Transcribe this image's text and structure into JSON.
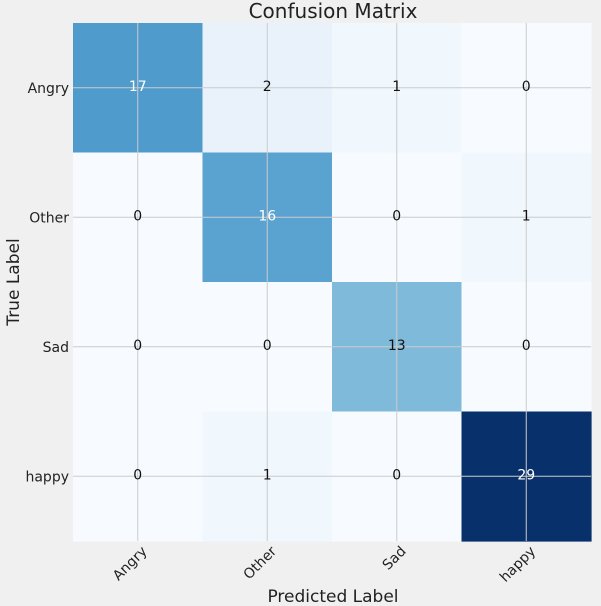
{
  "chart_data": {
    "type": "heatmap",
    "title": "Confusion Matrix",
    "xlabel": "Predicted Label",
    "ylabel": "True Label",
    "x_categories": [
      "Angry",
      "Other",
      "Sad",
      "happy"
    ],
    "y_categories": [
      "Angry",
      "Other",
      "Sad",
      "happy"
    ],
    "matrix": [
      [
        17,
        2,
        1,
        0
      ],
      [
        0,
        16,
        0,
        1
      ],
      [
        0,
        0,
        13,
        0
      ],
      [
        0,
        1,
        0,
        29
      ]
    ],
    "value_range": [
      0,
      29
    ],
    "colormap": "Blues",
    "colormap_low": "#f7fbff",
    "colormap_high": "#08306b",
    "label_color_dark": "#111111",
    "label_color_light": "#ffffff",
    "grid": true,
    "x_tick_rotation_deg": -45
  }
}
